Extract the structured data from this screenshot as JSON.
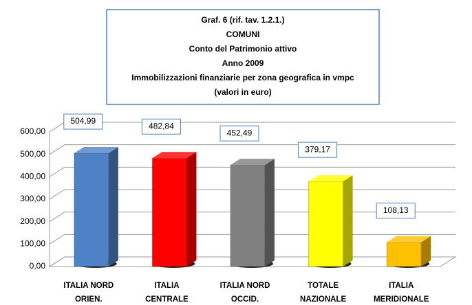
{
  "chart_data": {
    "type": "bar3d",
    "title": [
      "Graf. 6 (rif. tav. 1.2.1.)",
      "COMUNI",
      "Conto del Patrimonio attivo",
      "Anno 2009",
      "Immobilizzazioni finanziarie per zona geografica in vmpc",
      "(valori in euro)"
    ],
    "categories": [
      [
        "ITALIA NORD",
        "ORIEN."
      ],
      [
        "ITALIA",
        "CENTRALE"
      ],
      [
        "ITALIA NORD",
        "OCCID."
      ],
      [
        "TOTALE",
        "NAZIONALE"
      ],
      [
        "ITALIA",
        "MERIDIONALE"
      ]
    ],
    "values": [
      504.99,
      482.84,
      452.49,
      379.17,
      108.13
    ],
    "value_labels": [
      "504,99",
      "482,84",
      "452,49",
      "379,17",
      "108,13"
    ],
    "colors": [
      "#4f81c7",
      "#ff0000",
      "#808080",
      "#ffff00",
      "#ffc000"
    ],
    "ylim": [
      0,
      600
    ],
    "yticks": [
      {
        "value": 0,
        "label": "0,00"
      },
      {
        "value": 100,
        "label": "100,00"
      },
      {
        "value": 200,
        "label": "200,00"
      },
      {
        "value": 300,
        "label": "300,00"
      },
      {
        "value": 400,
        "label": "400,00"
      },
      {
        "value": 500,
        "label": "500,00"
      },
      {
        "value": 600,
        "label": "600,00"
      }
    ],
    "grid": true
  }
}
